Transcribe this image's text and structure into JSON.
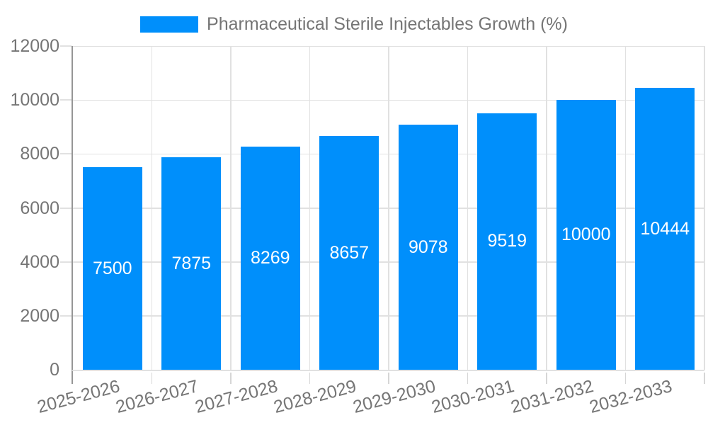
{
  "legend": {
    "label": "Pharmaceutical Sterile Injectables Growth (%)"
  },
  "chart_data": {
    "type": "bar",
    "title": "Pharmaceutical Sterile Injectables Growth (%)",
    "categories": [
      "2025-2026",
      "2026-2027",
      "2027-2028",
      "2028-2029",
      "2029-2030",
      "2030-2031",
      "2031-2032",
      "2032-2033"
    ],
    "series": [
      {
        "name": "Pharmaceutical Sterile Injectables Growth (%)",
        "values": [
          7500,
          7875,
          8269,
          8657,
          9078,
          9519,
          10000,
          10444
        ]
      }
    ],
    "data_labels": [
      "7500",
      "7875",
      "8269",
      "8657",
      "9078",
      "9519",
      "10000",
      "10444"
    ],
    "xlabel": "",
    "ylabel": "",
    "ylim": [
      0,
      12000
    ],
    "yticks": [
      0,
      2000,
      4000,
      6000,
      8000,
      10000,
      12000
    ],
    "grid": true,
    "legend_position": "top"
  },
  "colors": {
    "bar": "#008FFB",
    "grid": "#e1e1e1",
    "axis": "#969696",
    "tick_text": "#757575",
    "data_label": "#ffffff"
  }
}
